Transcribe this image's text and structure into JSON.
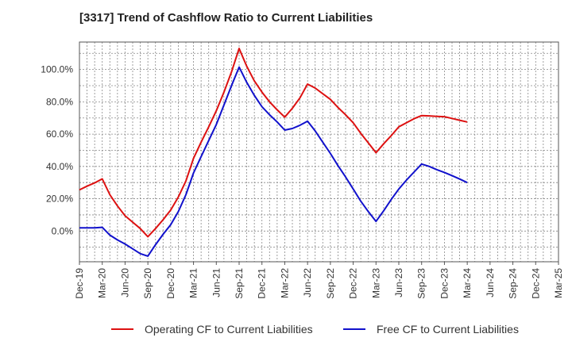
{
  "chart_data": {
    "type": "line",
    "title": "[3317]  Trend of Cashflow Ratio to Current Liabilities",
    "xlabel": "",
    "ylabel": "",
    "x_ticks": [
      "Dec-19",
      "Mar-20",
      "Jun-20",
      "Sep-20",
      "Dec-20",
      "Mar-21",
      "Jun-21",
      "Sep-21",
      "Dec-21",
      "Mar-22",
      "Jun-22",
      "Sep-22",
      "Dec-22",
      "Mar-23",
      "Jun-23",
      "Sep-23",
      "Dec-23",
      "Mar-24",
      "Jun-24",
      "Sep-24",
      "Dec-24",
      "Mar-25"
    ],
    "y_ticks": [
      0,
      20,
      40,
      60,
      80,
      100
    ],
    "y_tick_labels": [
      "0.0%",
      "20.0%",
      "40.0%",
      "60.0%",
      "80.0%",
      "100.0%"
    ],
    "ylim": [
      -19,
      117
    ],
    "grid": true,
    "legend_position": "bottom",
    "series": [
      {
        "name": "Operating CF to Current Liabilities",
        "color": "#dd1111",
        "x": [
          "Dec-19",
          "Jan-20",
          "Feb-20",
          "Mar-20",
          "Apr-20",
          "May-20",
          "Jun-20",
          "Jul-20",
          "Aug-20",
          "Sep-20",
          "Oct-20",
          "Nov-20",
          "Dec-20",
          "Jan-21",
          "Feb-21",
          "Mar-21",
          "Apr-21",
          "May-21",
          "Jun-21",
          "Jul-21",
          "Aug-21",
          "Sep-21",
          "Oct-21",
          "Nov-21",
          "Dec-21",
          "Jan-22",
          "Feb-22",
          "Mar-22",
          "Apr-22",
          "May-22",
          "Jun-22",
          "Jul-22",
          "Aug-22",
          "Sep-22",
          "Oct-22",
          "Nov-22",
          "Dec-22",
          "Jan-23",
          "Feb-23",
          "Mar-23",
          "Apr-23",
          "May-23",
          "Jun-23",
          "Jul-23",
          "Aug-23",
          "Sep-23",
          "Oct-23",
          "Nov-23",
          "Dec-23",
          "Jan-24",
          "Feb-24",
          "Mar-24"
        ],
        "values": [
          25.5,
          27.8,
          29.8,
          32.3,
          22.5,
          15.5,
          9.5,
          5.5,
          1.5,
          -3.5,
          1.5,
          7.0,
          13.0,
          21.0,
          31.0,
          45.0,
          55.0,
          64.5,
          74.5,
          86.0,
          98.5,
          113.0,
          102.0,
          93.0,
          86.0,
          80.0,
          75.0,
          70.5,
          76.0,
          82.5,
          91.0,
          88.5,
          85.0,
          81.5,
          76.5,
          72.0,
          67.0,
          60.5,
          54.5,
          48.5,
          54.0,
          59.0,
          64.5,
          67.0,
          69.5,
          71.5,
          71.3,
          71.0,
          70.8,
          69.7,
          68.6,
          67.5
        ]
      },
      {
        "name": "Free CF to Current Liabilities",
        "color": "#1111cc",
        "x": [
          "Dec-19",
          "Jan-20",
          "Feb-20",
          "Mar-20",
          "Apr-20",
          "May-20",
          "Jun-20",
          "Jul-20",
          "Aug-20",
          "Sep-20",
          "Oct-20",
          "Nov-20",
          "Dec-20",
          "Jan-21",
          "Feb-21",
          "Mar-21",
          "Apr-21",
          "May-21",
          "Jun-21",
          "Jul-21",
          "Aug-21",
          "Sep-21",
          "Oct-21",
          "Nov-21",
          "Dec-21",
          "Jan-22",
          "Feb-22",
          "Mar-22",
          "Apr-22",
          "May-22",
          "Jun-22",
          "Jul-22",
          "Aug-22",
          "Sep-22",
          "Oct-22",
          "Nov-22",
          "Dec-22",
          "Jan-23",
          "Feb-23",
          "Mar-23",
          "Apr-23",
          "May-23",
          "Jun-23",
          "Jul-23",
          "Aug-23",
          "Sep-23",
          "Oct-23",
          "Nov-23",
          "Dec-23",
          "Jan-24",
          "Feb-24",
          "Mar-24"
        ],
        "values": [
          2.0,
          2.0,
          2.0,
          2.3,
          -2.5,
          -5.5,
          -8.0,
          -11.0,
          -14.0,
          -15.5,
          -8.5,
          -2.0,
          4.0,
          12.0,
          22.5,
          36.0,
          46.0,
          56.0,
          66.0,
          78.0,
          90.0,
          101.5,
          92.0,
          84.0,
          77.0,
          72.0,
          67.5,
          62.5,
          63.5,
          65.5,
          68.0,
          62.0,
          55.0,
          48.0,
          40.5,
          33.5,
          26.0,
          18.5,
          12.0,
          6.0,
          12.5,
          19.5,
          26.0,
          31.5,
          36.5,
          41.5,
          40.0,
          38.0,
          36.3,
          34.3,
          32.2,
          30.0
        ]
      }
    ]
  }
}
